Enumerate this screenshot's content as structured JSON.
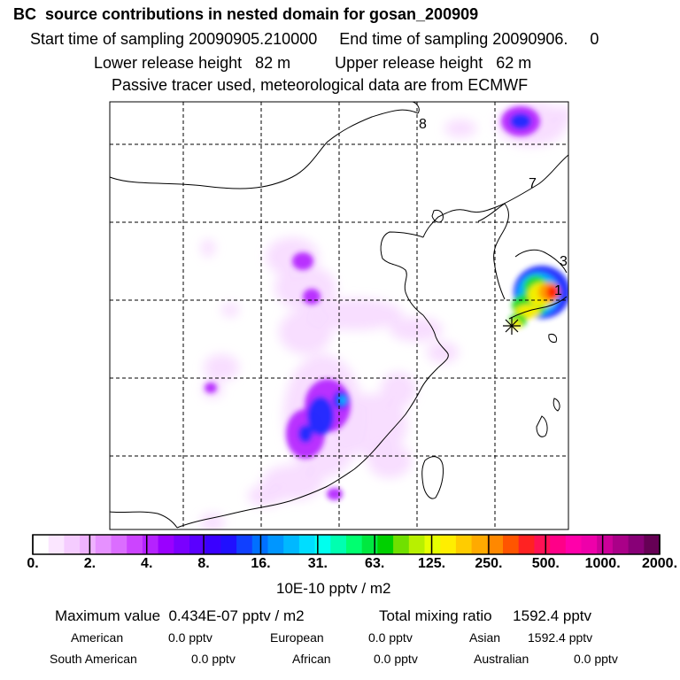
{
  "header": {
    "title": "BC  source contributions in nested domain for gosan_200909",
    "sampling_line": "Start time of sampling 20090905.210000     End time of sampling 20090906.     0",
    "release_line": "Lower release height   82 m          Upper release height   62 m",
    "info_line": "Passive tracer used, meteorological data are from ECMWF"
  },
  "map": {
    "grid_labels": [
      "8",
      "7",
      "3",
      "1"
    ],
    "receptor_marker": "receptor-asterisk",
    "colors": {
      "low": "#f7d8ff",
      "violet": "#b11cff",
      "blue": "#1e2cff",
      "cyan": "#00b3ff",
      "green": "#22dd22",
      "yellow": "#ffee00",
      "orange": "#ff9900",
      "red": "#ff2200"
    }
  },
  "colorbar": {
    "tick_labels": [
      "0.",
      "2.",
      "4.",
      "8.",
      "16.",
      "31.",
      "63.",
      "125.",
      "250.",
      "500.",
      "1000.",
      "2000."
    ],
    "unit_label": "10E-10 pptv / m2",
    "colors": [
      "#ffffff",
      "#fbe6ff",
      "#f5ccff",
      "#efb2ff",
      "#e691ff",
      "#db6dff",
      "#cc44ff",
      "#b522ff",
      "#9a00ff",
      "#7a00ff",
      "#5a00ff",
      "#3a00ff",
      "#2010ff",
      "#1040ff",
      "#0070ff",
      "#0096ff",
      "#00b8ff",
      "#00ddff",
      "#00ffee",
      "#00ffb0",
      "#00ff70",
      "#00e840",
      "#00d000",
      "#70e000",
      "#b8f000",
      "#e6ff00",
      "#ffee00",
      "#ffcc00",
      "#ffaa00",
      "#ff8800",
      "#ff5500",
      "#ff2222",
      "#ff1155",
      "#ff0088",
      "#ff00aa",
      "#ee00aa",
      "#cc0099",
      "#aa0088",
      "#880077",
      "#660055"
    ]
  },
  "stats": {
    "max_line": "Maximum value  0.434E-07 pptv / m2",
    "total_line": "Total mixing ratio     1592.4 pptv",
    "american_label": "American",
    "american_value": "0.0 pptv",
    "european_label": "European",
    "european_value": "0.0 pptv",
    "asian_label": "Asian",
    "asian_value": "1592.4 pptv",
    "south_american_label": "South American",
    "south_american_value": "0.0 pptv",
    "african_label": "African",
    "african_value": "0.0 pptv",
    "australian_label": "Australian",
    "australian_value": "0.0 pptv"
  }
}
